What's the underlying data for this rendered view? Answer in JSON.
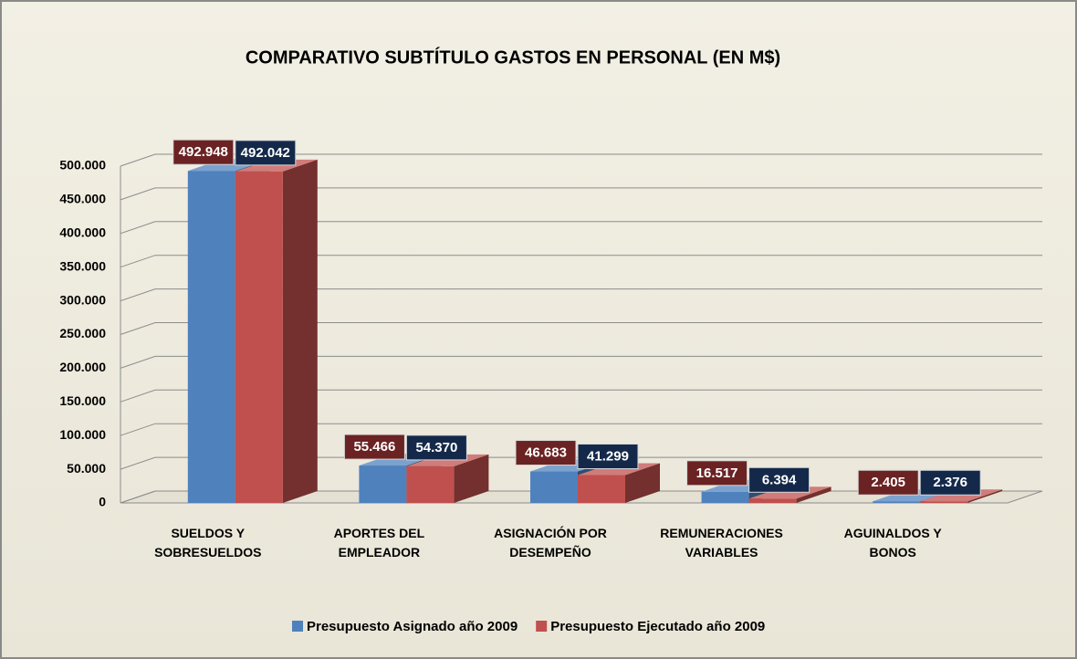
{
  "chart_data": {
    "type": "bar3d",
    "title": "COMPARATIVO SUBTÍTULO GASTOS EN PERSONAL (EN M$)",
    "categories": [
      "SUELDOS Y SOBRESUELDOS",
      "APORTES DEL EMPLEADOR",
      "ASIGNACIÓN POR DESEMPEÑO",
      "REMUNERACIONES VARIABLES",
      "AGUINALDOS Y BONOS"
    ],
    "series": [
      {
        "name": "Presupuesto Asignado año 2009",
        "color": "#4f81bd",
        "label_color": "#6b2222",
        "values": [
          492948,
          55466,
          46683,
          16517,
          2405
        ],
        "value_labels": [
          "492.948",
          "55.466",
          "46.683",
          "16.517",
          "2.405"
        ]
      },
      {
        "name": "Presupuesto Ejecutado año 2009",
        "color": "#c0504d",
        "label_color": "#14294a",
        "values": [
          492042,
          54370,
          41299,
          6394,
          2376
        ],
        "value_labels": [
          "492.042",
          "54.370",
          "41.299",
          "6.394",
          "2.376"
        ]
      }
    ],
    "ylim": [
      0,
      500000
    ],
    "yticks": [
      {
        "value": 0,
        "label": "0"
      },
      {
        "value": 50000,
        "label": "50.000"
      },
      {
        "value": 100000,
        "label": "100.000"
      },
      {
        "value": 150000,
        "label": "150.000"
      },
      {
        "value": 200000,
        "label": "200.000"
      },
      {
        "value": 250000,
        "label": "250.000"
      },
      {
        "value": 300000,
        "label": "300.000"
      },
      {
        "value": 350000,
        "label": "350.000"
      },
      {
        "value": 400000,
        "label": "400.000"
      },
      {
        "value": 450000,
        "label": "450.000"
      },
      {
        "value": 500000,
        "label": "500.000"
      }
    ],
    "grid": true
  }
}
